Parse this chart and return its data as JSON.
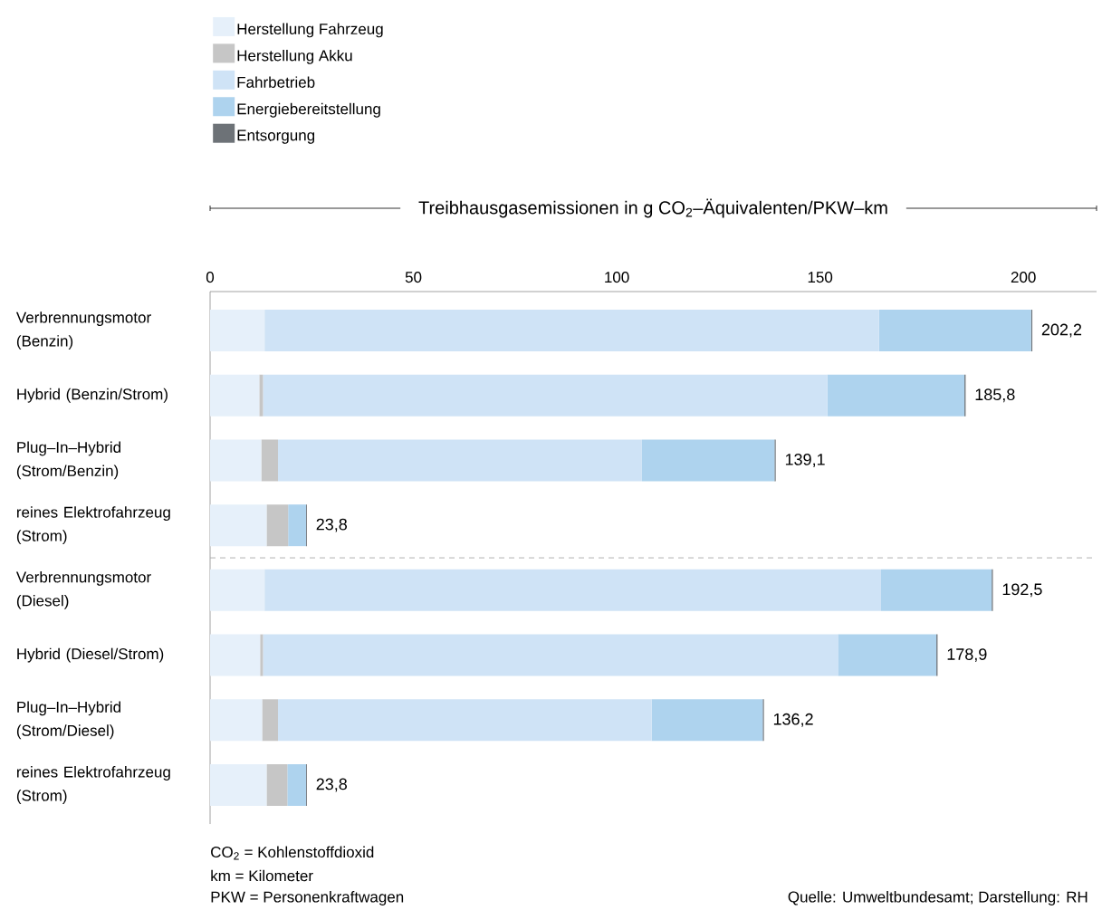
{
  "chart_data": {
    "type": "bar",
    "orientation": "horizontal",
    "stacked": true,
    "xlabel": "Treibhausgasemissionen in g CO$_{2}$–Äquivalenten/PKW–km",
    "categories": [
      "Verbrennungsmotor (Benzin)",
      "Hybrid (Benzin/Strom)",
      "Plug–In–Hybrid (Strom/Benzin)",
      "reines Elektrofahrzeug (Strom)",
      "Verbrennungsmotor (Diesel)",
      "Hybrid (Diesel/Strom)",
      "Plug–In–Hybrid (Strom/Diesel)",
      "reines Elektrofahrzeug (Strom)"
    ],
    "series": [
      {
        "name": "Herstellung Fahrzeug",
        "color": "#e6f0fa",
        "values": [
          13.4,
          12.1,
          12.6,
          13.9,
          13.4,
          12.3,
          12.8,
          13.9
        ]
      },
      {
        "name": "Herstellung Akku",
        "color": "#c6c6c6",
        "values": [
          0,
          0.9,
          4.1,
          5.3,
          0,
          0.7,
          3.9,
          5.1
        ]
      },
      {
        "name": "Fahrbetrieb",
        "color": "#cfe3f6",
        "values": [
          151.1,
          138.8,
          89.5,
          0,
          151.6,
          141.4,
          91.9,
          0
        ]
      },
      {
        "name": "Energiebereitstellung",
        "color": "#aed3ee",
        "values": [
          37.4,
          33.7,
          32.6,
          4.4,
          27.2,
          24.2,
          27.3,
          4.6
        ]
      },
      {
        "name": "Entsorgung",
        "color": "#6d7277",
        "values": [
          0.3,
          0.3,
          0.3,
          0.2,
          0.3,
          0.3,
          0.3,
          0.2
        ]
      }
    ],
    "totals": [
      "202,2",
      "185,8",
      "139,1",
      "23,8",
      "192,5",
      "178,9",
      "136,2",
      "23,8"
    ],
    "xlim": [
      0,
      218
    ],
    "xticks": [
      0,
      50,
      100,
      150,
      200
    ],
    "legend": "top left",
    "annotations": [
      "CO$_{2}$ = Kohlenstoffdioxid",
      "km = Kilometer",
      "PKW = Personenkraftwagen",
      "Quelle: Umweltbundesamt; Darstellung: RH"
    ]
  }
}
